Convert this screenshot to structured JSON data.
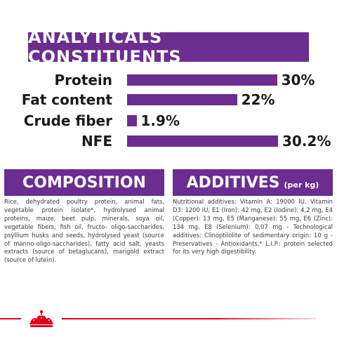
{
  "title": "ANALYTICALS CONSTITUENTS",
  "constituents": [
    {
      "label": "Protein",
      "value": "30%",
      "level": 30
    },
    {
      "label": "Fat content",
      "value": "22%",
      "level": 22
    },
    {
      "label": "Crude fiber",
      "value": "1.9%",
      "level": 1.9
    },
    {
      "label": "NFE",
      "value": "30.2%",
      "level": 30.2
    }
  ],
  "composition": {
    "heading": "COMPOSITION",
    "text": "Rice, dehydrated poultry protein, animal fats, vegetable protein isolate*, hydrolysed animal proteins, maize, beet pulp, minerals, soya oil, vegetable fibers, fish oil, fructo- oligo-saccharides, psyllium husks and seeds, hydrolysed yeast (source of manno-oligo-saccharides), fatty acid salt, yeasts extracts (source of betaglucans), marigold extract (source of lutein)."
  },
  "additives": {
    "heading": "ADDITIVES",
    "subheading": "(per kg)",
    "text": "Nutritional additives: Vitamin A: 19000 IU, Vitamin D3: 1200 IU, E1 (Iron): 42 mg, E2 (Iodine): 4,2 mg, E4 (Copper): 13 mg, E5 (Manganese): 55 mg, E6 (Zinc): 134 mg, E8 (Selenium): 0,07 mg - Technological additives: Clinoptilolite of sedimentary origin: 10 g - Preservatives - Antioxidants.* L.I.P.: protein selected for its very high digestibility."
  },
  "colors": {
    "accent": "#6b2d90",
    "brand_red": "#e2001a"
  },
  "logo_icon": "royal-canin-crown-logo"
}
